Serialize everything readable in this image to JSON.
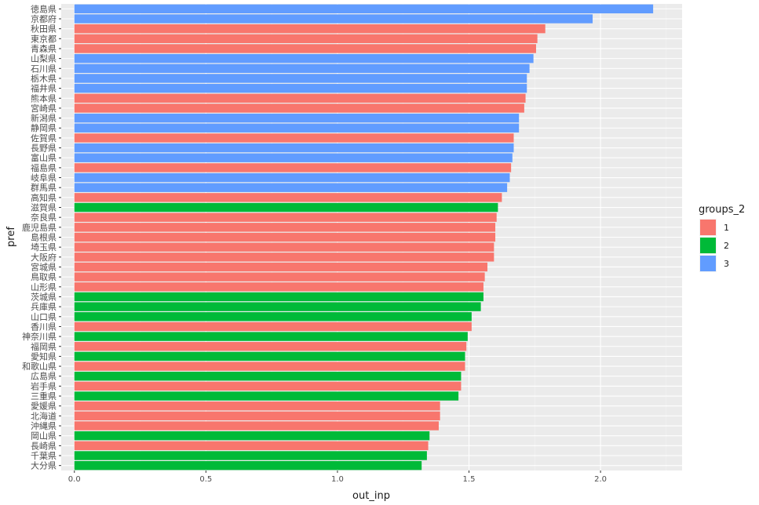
{
  "chart_data": {
    "type": "bar",
    "orientation": "horizontal",
    "xlabel": "out_inp",
    "ylabel": "pref",
    "xlim": [
      -0.05,
      2.31
    ],
    "x_ticks": [
      "0.0",
      "0.5",
      "1.0",
      "1.5",
      "2.0"
    ],
    "x_tick_values": [
      0,
      0.5,
      1.0,
      1.5,
      2.0
    ],
    "legend": {
      "title": "groups_2",
      "position": "right",
      "items": [
        {
          "label": "1",
          "color": "#F8766D"
        },
        {
          "label": "2",
          "color": "#00BA38"
        },
        {
          "label": "3",
          "color": "#619CFF"
        }
      ]
    },
    "grid": true,
    "categories": [
      "徳島県",
      "京都府",
      "秋田県",
      "東京都",
      "青森県",
      "山梨県",
      "石川県",
      "栃木県",
      "福井県",
      "熊本県",
      "宮崎県",
      "新潟県",
      "静岡県",
      "佐賀県",
      "長野県",
      "富山県",
      "福島県",
      "岐阜県",
      "群馬県",
      "高知県",
      "滋賀県",
      "奈良県",
      "鹿児島県",
      "島根県",
      "埼玉県",
      "大阪府",
      "宮城県",
      "鳥取県",
      "山形県",
      "茨城県",
      "兵庫県",
      "山口県",
      "香川県",
      "神奈川県",
      "福岡県",
      "愛知県",
      "和歌山県",
      "広島県",
      "岩手県",
      "三重県",
      "愛媛県",
      "北海道",
      "沖縄県",
      "岡山県",
      "長崎県",
      "千葉県",
      "大分県"
    ],
    "values": [
      2.2,
      1.97,
      1.79,
      1.76,
      1.755,
      1.745,
      1.73,
      1.72,
      1.72,
      1.715,
      1.71,
      1.69,
      1.69,
      1.67,
      1.67,
      1.665,
      1.66,
      1.655,
      1.645,
      1.625,
      1.61,
      1.605,
      1.6,
      1.6,
      1.595,
      1.595,
      1.57,
      1.56,
      1.555,
      1.555,
      1.545,
      1.51,
      1.51,
      1.495,
      1.49,
      1.485,
      1.485,
      1.47,
      1.47,
      1.46,
      1.39,
      1.39,
      1.385,
      1.35,
      1.345,
      1.34,
      1.32
    ],
    "groups": [
      "3",
      "3",
      "1",
      "1",
      "1",
      "3",
      "3",
      "3",
      "3",
      "1",
      "1",
      "3",
      "3",
      "1",
      "3",
      "3",
      "1",
      "3",
      "3",
      "1",
      "2",
      "1",
      "1",
      "1",
      "1",
      "1",
      "1",
      "1",
      "1",
      "2",
      "2",
      "2",
      "1",
      "2",
      "1",
      "2",
      "1",
      "2",
      "1",
      "2",
      "1",
      "1",
      "1",
      "2",
      "1",
      "2",
      "2"
    ]
  }
}
